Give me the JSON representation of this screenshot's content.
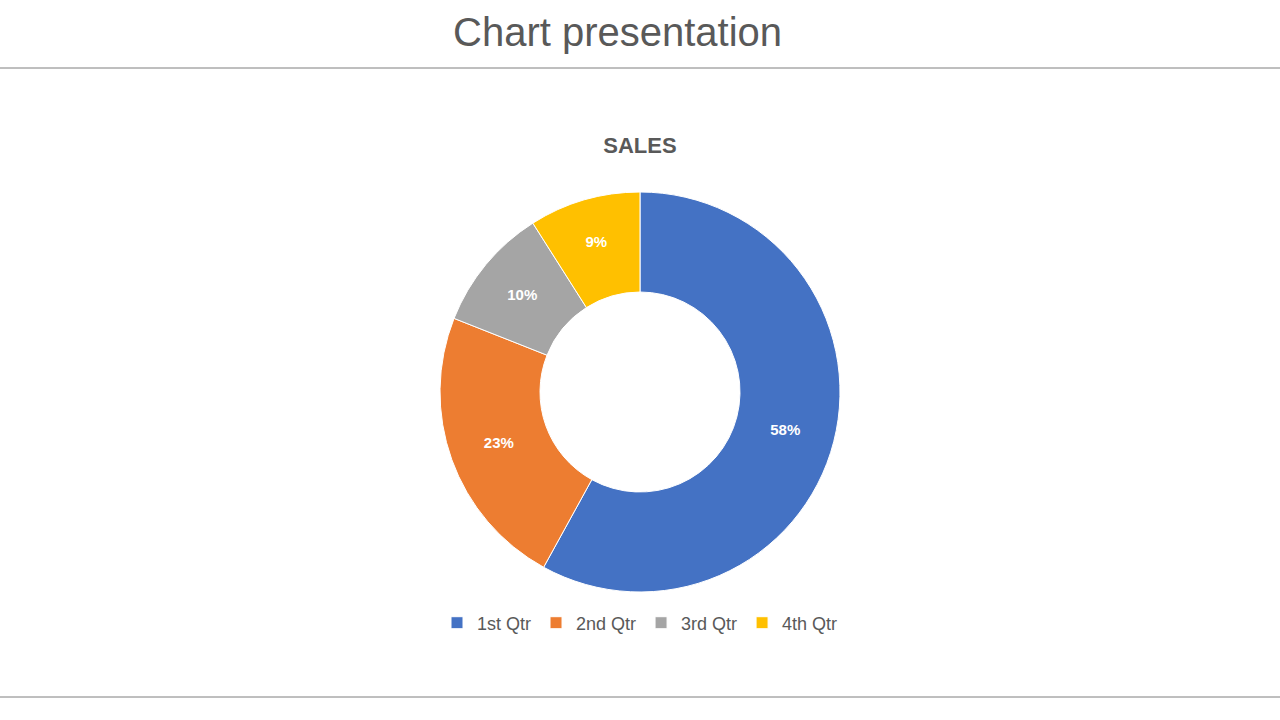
{
  "slide_title": "Chart presentation",
  "chart_data": {
    "type": "pie",
    "title": "SALES",
    "categories": [
      "1st Qtr",
      "2nd Qtr",
      "3rd Qtr",
      "4th Qtr"
    ],
    "values": [
      58,
      23,
      10,
      9
    ],
    "value_labels": [
      "58%",
      "23%",
      "10%",
      "9%"
    ],
    "colors": [
      "#4472c4",
      "#ed7d31",
      "#a5a5a5",
      "#ffc000"
    ],
    "data_labels": true,
    "legend": "bottom"
  }
}
